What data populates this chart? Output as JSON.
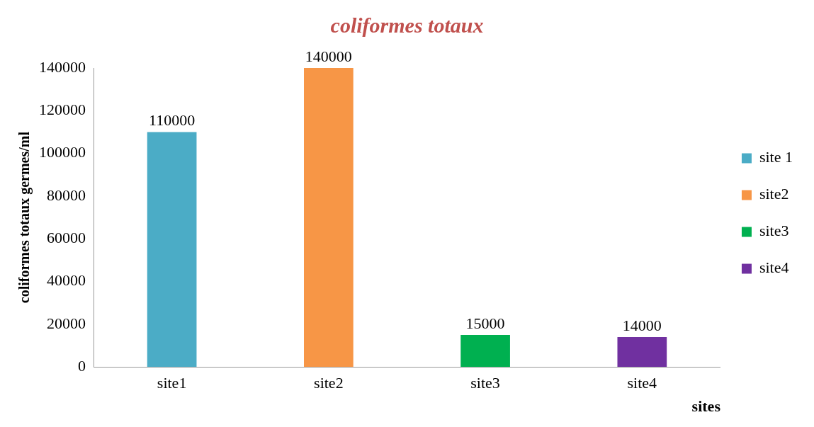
{
  "chart_data": {
    "type": "bar",
    "title": "coliformes totaux",
    "xlabel": "sites",
    "ylabel": "coliformes totaux germes/ml",
    "categories": [
      "site1",
      "site2",
      "site3",
      "site4"
    ],
    "series": [
      {
        "name": "site 1",
        "color": "#4bacc6",
        "values": [
          110000,
          null,
          null,
          null
        ]
      },
      {
        "name": "site2",
        "color": "#f79646",
        "values": [
          null,
          140000,
          null,
          null
        ]
      },
      {
        "name": "site3",
        "color": "#00b050",
        "values": [
          null,
          null,
          15000,
          null
        ]
      },
      {
        "name": "site4",
        "color": "#7030a0",
        "values": [
          null,
          null,
          null,
          14000
        ]
      }
    ],
    "ylim": [
      0,
      140000
    ],
    "yticks": [
      0,
      20000,
      40000,
      60000,
      80000,
      100000,
      120000,
      140000
    ],
    "grid": false,
    "legend": "right",
    "data_labels": true
  }
}
